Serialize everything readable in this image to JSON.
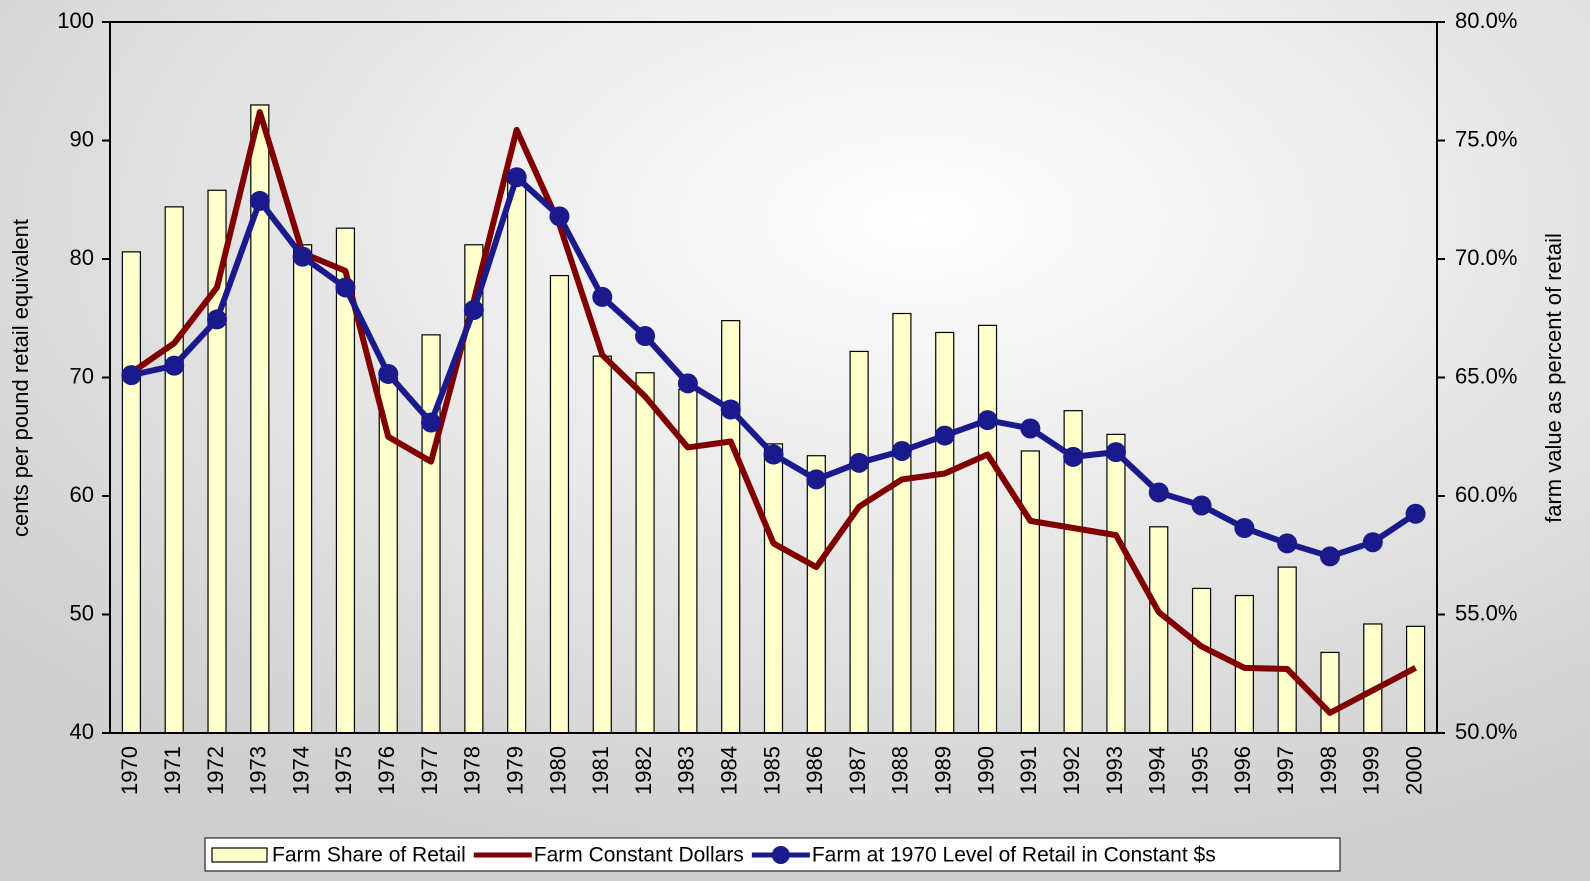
{
  "chart_data": {
    "type": "combo",
    "y_label": "cents per pound retail equivalent",
    "y2_label": "farm value as percent of retail",
    "categories": [
      "1970",
      "1971",
      "1972",
      "1973",
      "1974",
      "1975",
      "1976",
      "1977",
      "1978",
      "1979",
      "1980",
      "1981",
      "1982",
      "1983",
      "1984",
      "1985",
      "1986",
      "1987",
      "1988",
      "1989",
      "1990",
      "1991",
      "1992",
      "1993",
      "1994",
      "1995",
      "1996",
      "1997",
      "1998",
      "1999",
      "2000"
    ],
    "series": [
      {
        "name": "Farm Share of Retail",
        "type": "bar",
        "axis": "y2",
        "color": "#ffffcc",
        "values": [
          70.3,
          72.2,
          72.9,
          76.5,
          70.6,
          71.3,
          65.0,
          66.8,
          70.6,
          73.3,
          69.3,
          65.9,
          65.2,
          64.5,
          67.4,
          62.2,
          61.7,
          66.1,
          67.7,
          66.9,
          67.2,
          61.9,
          63.6,
          62.6,
          58.7,
          56.1,
          55.8,
          57.0,
          53.4,
          54.6,
          54.5
        ]
      },
      {
        "name": "Farm Constant Dollars",
        "type": "line",
        "color": "#800000",
        "values": [
          70.4,
          72.9,
          77.6,
          92.4,
          80.5,
          79.0,
          65.0,
          62.9,
          76.5,
          90.9,
          82.9,
          71.9,
          68.4,
          64.1,
          64.6,
          56.0,
          54.0,
          59.1,
          61.4,
          61.9,
          63.5,
          57.9,
          57.3,
          56.7,
          50.2,
          47.3,
          45.5,
          45.4,
          41.7,
          43.6,
          45.5
        ]
      },
      {
        "name": "Farm at 1970 Level of Retail in Constant $s",
        "type": "line",
        "marker": "circle",
        "color": "#1a1a8c",
        "values": [
          70.2,
          71.0,
          74.9,
          84.9,
          80.2,
          77.6,
          70.3,
          66.2,
          75.7,
          86.9,
          83.6,
          76.8,
          73.5,
          69.5,
          67.3,
          63.5,
          61.4,
          62.8,
          63.8,
          65.1,
          66.4,
          65.7,
          63.3,
          63.7,
          60.3,
          59.2,
          57.3,
          56.0,
          54.9,
          56.1,
          58.5
        ]
      }
    ],
    "ylim": [
      40,
      100
    ],
    "yticks": [
      40,
      50,
      60,
      70,
      80,
      90,
      100
    ],
    "y2lim": [
      50,
      80
    ],
    "y2ticks": [
      {
        "value": 50,
        "label": "50.0%"
      },
      {
        "value": 55,
        "label": "55.0%"
      },
      {
        "value": 60,
        "label": "60.0%"
      },
      {
        "value": 65,
        "label": "65.0%"
      },
      {
        "value": 70,
        "label": "70.0%"
      },
      {
        "value": 75,
        "label": "75.0%"
      },
      {
        "value": 80,
        "label": "80.0%"
      }
    ],
    "legend": "bottom"
  }
}
